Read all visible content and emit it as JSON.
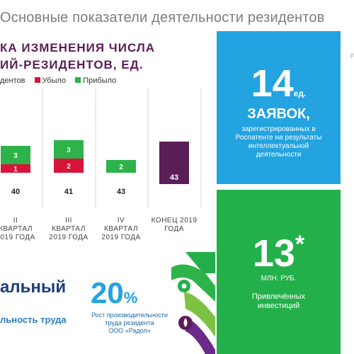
{
  "page": {
    "title": "Основные показатели деятельности резидентов",
    "edge_letter": "р"
  },
  "chart_heading": {
    "line1": "КА ИЗМЕНЕНИЯ ЧИСЛА",
    "line2": "ИЙ-РЕЗИДЕНТОВ, ЕД."
  },
  "colors": {
    "removed": "#d7143a",
    "added": "#2db34a",
    "total": "#5b1d57",
    "base_text": "#222222"
  },
  "chart_data": {
    "type": "bar",
    "title": "",
    "legend": [
      "дентов",
      "Убыло",
      "Прибыло"
    ],
    "categories": [
      {
        "line1": "II",
        "line2": "КВАРТАЛ",
        "line3": "2019 ГОДА"
      },
      {
        "line1": "III",
        "line2": "КВАРТАЛ",
        "line3": "2019 ГОДА"
      },
      {
        "line1": "IV",
        "line2": "КВАРТАЛ",
        "line3": "2019 ГОДА"
      },
      {
        "line1": "КОНЕЦ 2019",
        "line2": "ГОДА",
        "line3": ""
      }
    ],
    "base_values": [
      40,
      41,
      43,
      43
    ],
    "removed_values": [
      1,
      2,
      0,
      0
    ],
    "added_values": [
      3,
      3,
      2,
      0
    ],
    "total_bar_index": 3,
    "ylim": [
      38,
      50
    ]
  },
  "tile_applications": {
    "number": "14",
    "unit": "ед.",
    "headline": "ЗАЯВОК,",
    "caption": [
      "зарегистрированных в",
      "Роспатенте на результаты",
      "интеллектуальной",
      "деятельности"
    ]
  },
  "tile_investments": {
    "number": "13",
    "asterisk": "*",
    "unit": "МЛН. РУБ.",
    "caption": [
      "Привлечённых",
      "инвестиций"
    ]
  },
  "bottom": {
    "word": "альный",
    "sub": "льность труда",
    "percent": "20",
    "percent_sign": "%",
    "percent_caption": [
      "Рост производительности",
      "труда резидента",
      "ООО «Радол»"
    ]
  }
}
